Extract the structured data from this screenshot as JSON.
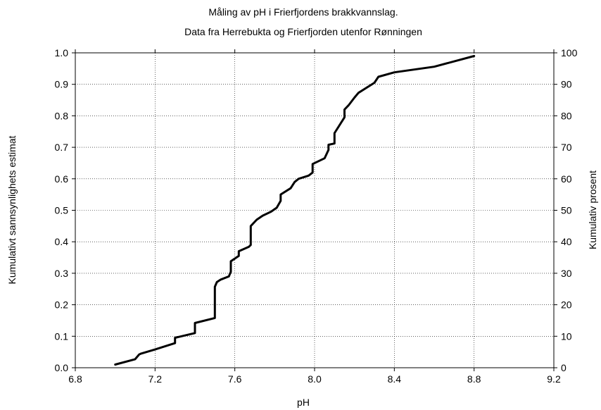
{
  "chart_data": {
    "type": "line",
    "title_line1": "Måling av pH i Frierfjordens brakkvannslag.",
    "title_line2": "Data fra Herrebukta og Frierfjorden utenfor Rønningen",
    "xlabel": "pH",
    "ylabel_left": "Kumulativt sannsynlighets estimat",
    "ylabel_right": "Kumulativ prosent",
    "xlim": [
      6.8,
      9.2
    ],
    "ylim_left": [
      0.0,
      1.0
    ],
    "ylim_right": [
      0,
      100
    ],
    "x_ticks": [
      "6.8",
      "7.2",
      "7.6",
      "8.0",
      "8.4",
      "8.8",
      "9.2"
    ],
    "y_ticks_left": [
      "0.0",
      "0.1",
      "0.2",
      "0.3",
      "0.4",
      "0.5",
      "0.6",
      "0.7",
      "0.8",
      "0.9",
      "1.0"
    ],
    "y_ticks_right": [
      "0",
      "10",
      "20",
      "30",
      "40",
      "50",
      "60",
      "70",
      "80",
      "90",
      "100"
    ],
    "grid": true,
    "series": [
      {
        "x": [
          7.0,
          7.1,
          7.12,
          7.13,
          7.2,
          7.3,
          7.3,
          7.4,
          7.4,
          7.5,
          7.5,
          7.51,
          7.53,
          7.57,
          7.58,
          7.58,
          7.62,
          7.62,
          7.67,
          7.68,
          7.68,
          7.71,
          7.74,
          7.78,
          7.81,
          7.83,
          7.83,
          7.88,
          7.9,
          7.92,
          7.97,
          7.99,
          7.99,
          8.05,
          8.07,
          8.07,
          8.1,
          8.1,
          8.15,
          8.15,
          8.17,
          8.2,
          8.22,
          8.3,
          8.32,
          8.4,
          8.6,
          8.8
        ],
        "y": [
          0.01,
          0.027,
          0.042,
          0.045,
          0.058,
          0.078,
          0.095,
          0.11,
          0.142,
          0.158,
          0.257,
          0.272,
          0.28,
          0.29,
          0.305,
          0.338,
          0.355,
          0.37,
          0.384,
          0.39,
          0.45,
          0.47,
          0.483,
          0.495,
          0.508,
          0.53,
          0.55,
          0.57,
          0.59,
          0.6,
          0.61,
          0.62,
          0.647,
          0.665,
          0.692,
          0.708,
          0.712,
          0.745,
          0.795,
          0.82,
          0.833,
          0.858,
          0.873,
          0.905,
          0.924,
          0.938,
          0.956,
          0.99
        ]
      }
    ]
  }
}
